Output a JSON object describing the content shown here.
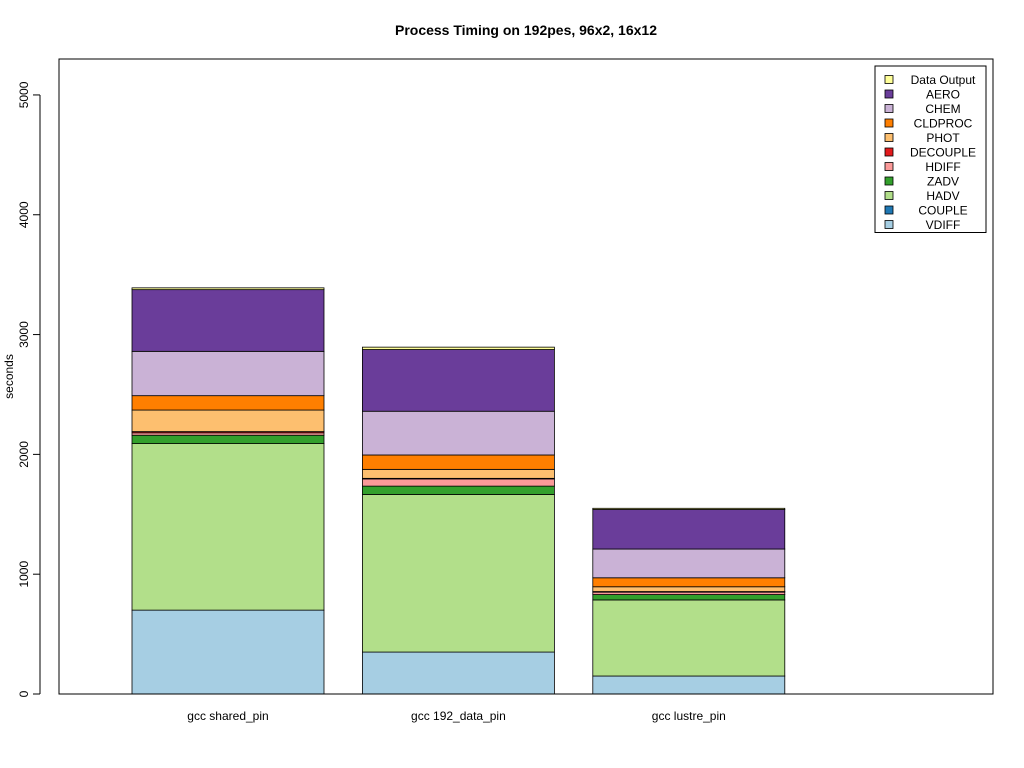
{
  "chart_data": {
    "type": "bar",
    "stacked": true,
    "title": "Process Timing on 192pes, 96x2, 16x12",
    "xlabel": "",
    "ylabel": "seconds",
    "ylim": [
      0,
      5300
    ],
    "yticks": [
      0,
      1000,
      2000,
      3000,
      4000,
      5000
    ],
    "grid": false,
    "legend_position": "top-right",
    "categories": [
      "gcc shared_pin",
      "gcc 192_data_pin",
      "gcc lustre_pin"
    ],
    "series": [
      {
        "name": "VDIFF",
        "color": "#a6cee3",
        "values": [
          700,
          350,
          150
        ]
      },
      {
        "name": "COUPLE",
        "color": "#1f78b4",
        "values": [
          0,
          0,
          0
        ]
      },
      {
        "name": "HADV",
        "color": "#b2df8a",
        "values": [
          1390,
          1315,
          635
        ]
      },
      {
        "name": "ZADV",
        "color": "#33a02c",
        "values": [
          70,
          70,
          45
        ]
      },
      {
        "name": "HDIFF",
        "color": "#fb9a99",
        "values": [
          20,
          60,
          20
        ]
      },
      {
        "name": "DECOUPLE",
        "color": "#e31a1c",
        "values": [
          10,
          5,
          5
        ]
      },
      {
        "name": "PHOT",
        "color": "#fdbf6f",
        "values": [
          180,
          75,
          40
        ]
      },
      {
        "name": "CLDPROC",
        "color": "#ff7f00",
        "values": [
          120,
          120,
          75
        ]
      },
      {
        "name": "CHEM",
        "color": "#cab2d6",
        "values": [
          370,
          365,
          240
        ]
      },
      {
        "name": "AERO",
        "color": "#6a3d9a",
        "values": [
          515,
          515,
          330
        ]
      },
      {
        "name": "Data Output",
        "color": "#ffff99",
        "values": [
          15,
          20,
          10
        ]
      }
    ]
  }
}
